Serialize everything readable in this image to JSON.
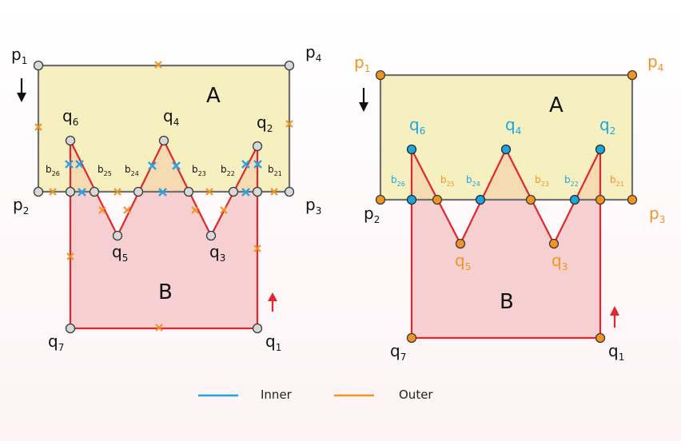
{
  "colors": {
    "inner": "#1ba6e0",
    "outer": "#f29422",
    "edge": "#e1262d",
    "frame": "#707070",
    "fillA": "#f6f0c0",
    "fillB": "#f6cfd0",
    "fillOverlap": "#f5dab2",
    "cross_inner": "#2aa3e0",
    "cross_outer": "#f0921f",
    "arrow_a": "#111111",
    "arrow_b": "#e1262d"
  },
  "left": {
    "region_a": "A",
    "region_b": "B",
    "p_labels": [
      {
        "t": "p",
        "s": "1"
      },
      {
        "t": "p",
        "s": "2"
      },
      {
        "t": "p",
        "s": "3"
      },
      {
        "t": "p",
        "s": "4"
      }
    ],
    "q_labels": [
      {
        "t": "q",
        "s": "1"
      },
      {
        "t": "q",
        "s": "2"
      },
      {
        "t": "q",
        "s": "3"
      },
      {
        "t": "q",
        "s": "4"
      },
      {
        "t": "q",
        "s": "5"
      },
      {
        "t": "q",
        "s": "6"
      },
      {
        "t": "q",
        "s": "7"
      }
    ],
    "b_labels": [
      {
        "t": "b",
        "s": "26"
      },
      {
        "t": "b",
        "s": "25"
      },
      {
        "t": "b",
        "s": "24"
      },
      {
        "t": "b",
        "s": "23"
      },
      {
        "t": "b",
        "s": "22"
      },
      {
        "t": "b",
        "s": "21"
      }
    ]
  },
  "right": {
    "region_a": "A",
    "region_b": "B",
    "p_labels": [
      {
        "t": "p",
        "s": "1"
      },
      {
        "t": "p",
        "s": "2"
      },
      {
        "t": "p",
        "s": "3"
      },
      {
        "t": "p",
        "s": "4"
      }
    ],
    "q_labels": [
      {
        "t": "q",
        "s": "1"
      },
      {
        "t": "q",
        "s": "2"
      },
      {
        "t": "q",
        "s": "3"
      },
      {
        "t": "q",
        "s": "4"
      },
      {
        "t": "q",
        "s": "5"
      },
      {
        "t": "q",
        "s": "6"
      },
      {
        "t": "q",
        "s": "7"
      }
    ],
    "b_labels": [
      {
        "t": "b",
        "s": "26"
      },
      {
        "t": "b",
        "s": "25"
      },
      {
        "t": "b",
        "s": "24"
      },
      {
        "t": "b",
        "s": "23"
      },
      {
        "t": "b",
        "s": "22"
      },
      {
        "t": "b",
        "s": "21"
      }
    ]
  },
  "legend": {
    "inner_label": "Inner",
    "outer_label": "Outer"
  }
}
